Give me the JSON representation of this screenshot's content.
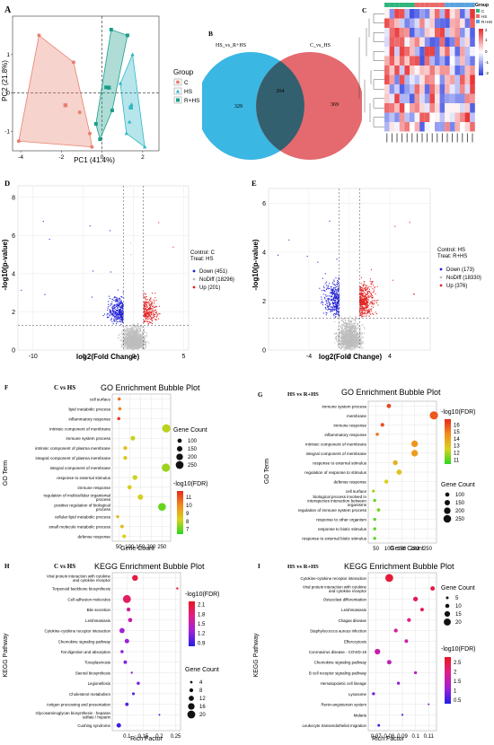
{
  "panels": {
    "A": {
      "letter": "A",
      "xlabel": "PC1 (41.4%)",
      "ylabel": "PC2 (21.8%)",
      "legend_title": "Group",
      "legend": [
        "C",
        "HS",
        "R+HS"
      ],
      "xticks": [
        "-4",
        "-2",
        "0",
        "2"
      ],
      "yticks": [
        "1",
        "0",
        "-1"
      ]
    },
    "B": {
      "letter": "B",
      "left_title": "HS_vs_R+HS",
      "right_title": "C_vs_HS",
      "left_only": "329",
      "overlap": "204",
      "right_only": "369"
    },
    "C": {
      "letter": "C",
      "legend_title": "Group",
      "legend": [
        "C",
        "HS",
        "R+HS"
      ],
      "scale": [
        "2",
        "1",
        "0",
        "-1",
        "-2"
      ]
    },
    "D": {
      "letter": "D",
      "xlabel": "log2(Fold Change)",
      "ylabel": "-log10(p-value)",
      "xticks": [
        "-10",
        "-5",
        "0",
        "5"
      ],
      "yticks": [
        "0",
        "2",
        "4",
        "6",
        "8"
      ],
      "control_line": "Control: C",
      "treat_line": "Treat:   HS",
      "legend": [
        "Down (451)",
        "NoDiff (18296)",
        "Up (201)"
      ]
    },
    "E": {
      "letter": "E",
      "xlabel": "log2(Fold Change)",
      "ylabel": "-log10(p-value)",
      "xticks": [
        "-4",
        "0",
        "4"
      ],
      "yticks": [
        "0",
        "2",
        "4",
        "6"
      ],
      "control_line": "Control: HS",
      "treat_line": "Treat:    R+HS",
      "legend": [
        "Down (173)",
        "NoDiff (18330)",
        "Up (376)"
      ]
    },
    "F": {
      "letter": "F",
      "compare": "C vs HS"
    },
    "G": {
      "letter": "G",
      "compare": "HS vs R+HS"
    },
    "H": {
      "letter": "H",
      "compare": "C vs HS"
    },
    "I": {
      "letter": "I",
      "compare": "HS vs R+HS"
    }
  },
  "chart_data": [
    {
      "panel": "A",
      "type": "scatter",
      "xlabel": "PC1 (41.4%)",
      "ylabel": "PC2 (21.8%)",
      "xlim": [
        -4.4,
        2.8
      ],
      "ylim": [
        -1.5,
        2
      ],
      "series": [
        {
          "name": "C",
          "color": "#e8806f",
          "points": [
            [
              -4.1,
              -1.25
            ],
            [
              -3.1,
              1.5
            ],
            [
              -1.4,
              0.8
            ],
            [
              -1.1,
              -0.5
            ],
            [
              -0.5,
              -1.4
            ],
            [
              -0.6,
              -1.05
            ]
          ]
        },
        {
          "name": "HS",
          "color": "#2fb6c6",
          "points": [
            [
              2.1,
              -1.4
            ],
            [
              1.5,
              1.0
            ],
            [
              1.2,
              -1.05
            ],
            [
              0.9,
              0.25
            ],
            [
              1.35,
              -0.75
            ],
            [
              1.45,
              -0.3
            ]
          ]
        },
        {
          "name": "R+HS",
          "color": "#1a9e8a",
          "points": [
            [
              0.45,
              1.65
            ],
            [
              1.25,
              1.5
            ],
            [
              0.2,
              0.15
            ],
            [
              0.5,
              -0.45
            ],
            [
              -0.1,
              -1.2
            ],
            [
              -0.3,
              -0.8
            ]
          ]
        }
      ]
    },
    {
      "panel": "C",
      "type": "heatmap",
      "rows": 13,
      "cols": 18,
      "values": [
        [
          0.1,
          -0.9,
          1.4,
          1.3,
          -0.6,
          -1.4,
          -1.2,
          -0.8,
          -1.0,
          0.3,
          1.1,
          -0.6,
          1.4,
          0.2,
          0.6,
          -1.2,
          -0.4,
          1.5
        ],
        [
          1.3,
          0.9,
          0.5,
          -0.4,
          -1.0,
          -0.7,
          -0.3,
          0.9,
          -0.2,
          0.4,
          -1.1,
          -1.2,
          -1.3,
          0.6,
          0.7,
          0.2,
          -1.1,
          1.2
        ],
        [
          -0.2,
          1.1,
          1.4,
          0.9,
          0.8,
          -1.3,
          -0.6,
          -0.8,
          0.4,
          0.2,
          1.2,
          1.4,
          -0.5,
          0.5,
          0.8,
          -0.9,
          -0.2,
          -1.3
        ],
        [
          -0.3,
          1.2,
          1.1,
          1.2,
          -0.1,
          0.5,
          0.9,
          0.2,
          -0.9,
          -1.3,
          -1.2,
          1.1,
          -1.4,
          -1.0,
          1.0,
          -0.4,
          0.3,
          -1.2
        ],
        [
          -0.1,
          1.4,
          -0.4,
          1.4,
          1.1,
          0.5,
          -0.6,
          -1.3,
          1.4,
          1.4,
          -1.1,
          0.4,
          1.1,
          -0.2,
          -1.2,
          0.7,
          -0.5,
          -0.1
        ],
        [
          0.6,
          1.2,
          0.4,
          1.1,
          0.4,
          1.2,
          1.3,
          -1.4,
          1.1,
          -0.6,
          -1.1,
          -0.7,
          -1.3,
          0.0,
          -0.6,
          0.5,
          -0.6,
          -1.1
        ],
        [
          1.1,
          0.4,
          1.3,
          -0.4,
          1.4,
          0.4,
          0.1,
          0.5,
          0.4,
          1.0,
          0.4,
          0.8,
          0.8,
          -0.2,
          -1.2,
          -0.9,
          0.5,
          0.8
        ],
        [
          1.3,
          0.7,
          -1.0,
          1.3,
          -0.6,
          -0.2,
          -0.5,
          0.2,
          0.9,
          0.8,
          0.0,
          -0.9,
          0.5,
          0.7,
          -0.5,
          1.2,
          0.5,
          1.5
        ],
        [
          0.3,
          -0.9,
          -0.4,
          -1.3,
          -0.8,
          -0.5,
          1.1,
          0.4,
          -1.2,
          1.1,
          0.4,
          -1.2,
          0.6,
          -0.2,
          -0.5,
          0.9,
          -0.3,
          1.4
        ],
        [
          0.4,
          -0.2,
          1.4,
          -0.6,
          -0.6,
          -1.3,
          0.8,
          -0.3,
          -0.8,
          1.4,
          0.2,
          -1.1,
          -0.8,
          -0.7,
          -0.9,
          -0.9,
          0.9,
          0.8
        ],
        [
          1.1,
          1.0,
          0.5,
          1.4,
          0.0,
          0.7,
          0.9,
          0.3,
          -0.2,
          0.9,
          0.3,
          -1.2,
          0.1,
          0.1,
          0.1,
          -0.3,
          0.4,
          -1.3
        ],
        [
          -0.8,
          -0.5,
          -0.9,
          0.8,
          -0.5,
          -0.8,
          -0.1,
          1.2,
          1.2,
          0.0,
          0.1,
          -0.5,
          0.1,
          -0.2,
          0.5,
          0.9,
          1.5,
          -0.5
        ],
        [
          -0.6,
          0.2,
          -0.1,
          0.7,
          1.0,
          0.0,
          0.6,
          -1.3,
          -0.1,
          0.0,
          -0.8,
          -0.8,
          0.9,
          -1.0,
          0.6,
          0.0,
          0.3,
          1.1
        ]
      ]
    },
    {
      "panel": "D",
      "type": "scatter",
      "title": "",
      "xlabel": "log2(Fold Change)",
      "ylabel": "-log10(p-value)",
      "xlim": [
        -11.5,
        5.5
      ],
      "ylim": [
        0,
        8.6
      ],
      "series": [
        {
          "name": "Down",
          "count": 451,
          "color": "#1f1fd6"
        },
        {
          "name": "NoDiff",
          "count": 18296,
          "color": "#bdbdbd"
        },
        {
          "name": "Up",
          "count": 201,
          "color": "#e32222"
        }
      ]
    },
    {
      "panel": "E",
      "type": "scatter",
      "title": "",
      "xlabel": "log2(Fold Change)",
      "ylabel": "-log10(p-value)",
      "xlim": [
        -8,
        8
      ],
      "ylim": [
        0,
        6.6
      ],
      "series": [
        {
          "name": "Down",
          "count": 173,
          "color": "#1f1fd6"
        },
        {
          "name": "NoDiff",
          "count": 18330,
          "color": "#bdbdbd"
        },
        {
          "name": "Up",
          "count": 376,
          "color": "#e32222"
        }
      ]
    },
    {
      "panel": "F",
      "type": "scatter",
      "title": "GO Enrichment Bubble Plot",
      "xlabel": "Gene Count",
      "ylabel": "GO Term",
      "xlim": [
        20,
        290
      ],
      "xticks": [
        50,
        100,
        150,
        200,
        250
      ],
      "size_legend": {
        "title": "Gene Count",
        "values": [
          100,
          150,
          200,
          250
        ]
      },
      "color_legend": {
        "title": "-log10(FDR)",
        "ticks": [
          11,
          10,
          9,
          8,
          7
        ],
        "range": [
          6.4,
          11.8
        ]
      },
      "terms": [
        "cell surface",
        "lipid metabolic process",
        "inflammatory response",
        "intrinsic component of membrane",
        "immune system process",
        "intrinsic component of plasma membrane",
        "integral component of plasma membrane",
        "integral component of membrane",
        "response to external stimulus",
        "immune response",
        "regulation of multicellular organismal process",
        "positive regulation of biological process",
        "cellular lipid metabolic process",
        "small molecule metabolic process",
        "defense response"
      ],
      "count": [
        52,
        55,
        50,
        270,
        115,
        80,
        80,
        268,
        125,
        100,
        150,
        250,
        45,
        65,
        75
      ],
      "fdr": [
        10.5,
        10.2,
        11.6,
        7.9,
        8.0,
        8.7,
        8.5,
        7.6,
        8.1,
        8.3,
        8.3,
        7.0,
        8.9,
        8.8,
        8.2
      ]
    },
    {
      "panel": "G",
      "type": "scatter",
      "title": "GO Enrichment Bubble Plot",
      "xlabel": "Gene Count",
      "ylabel": "GO Term",
      "xlim": [
        20,
        285
      ],
      "xticks": [
        50,
        100,
        150,
        200,
        250
      ],
      "size_legend": {
        "title": "Gene Count",
        "values": [
          100,
          150,
          200,
          250
        ]
      },
      "color_legend": {
        "title": "-log10(FDR)",
        "ticks": [
          16,
          15,
          14,
          13,
          12,
          11
        ],
        "range": [
          10.4,
          16.8
        ]
      },
      "terms": [
        "immune system process",
        "membrane",
        "immune response",
        "inflammatory response",
        "intrinsic component of membrane",
        "integral component of membrane",
        "response to external stimulus",
        "regulation of response to stimulus",
        "defense response",
        "cell surface",
        "biological process involved in interspecies interaction between organisms",
        "regulation of immune system process",
        "response to other organism",
        "response to biotic stimulus",
        "response to external biotic stimulus"
      ],
      "count": [
        100,
        275,
        75,
        55,
        200,
        200,
        125,
        140,
        90,
        40,
        45,
        60,
        45,
        45,
        45
      ],
      "fdr": [
        16.2,
        15.8,
        16.0,
        15.2,
        14.4,
        14.2,
        13.6,
        13.0,
        12.5,
        11.8,
        11.2,
        11.4,
        11.0,
        11.0,
        10.9
      ]
    },
    {
      "panel": "H",
      "type": "scatter",
      "title": "KEGG Enrichment Bubble Plot",
      "xlabel": "Rich Factor",
      "ylabel": "KEGG Pathway",
      "xlim": [
        0.055,
        0.265
      ],
      "xticks": [
        0.1,
        0.15,
        0.2,
        0.25
      ],
      "size_legend": {
        "title": "Gene Count",
        "values": [
          4,
          8,
          12,
          16,
          20
        ]
      },
      "color_legend": {
        "title": "-log10(FDR)",
        "ticks": [
          2.1,
          1.8,
          1.5,
          1.2,
          0.9
        ],
        "range": [
          0.8,
          2.2
        ]
      },
      "terms": [
        "Viral protein interaction with cytokine and cytokine receptor",
        "Terpenoid backbone biosynthesis",
        "Cell adhesion molecules",
        "Bile secretion",
        "Leishmaniasis",
        "Cytokine-cytokine receptor interaction",
        "Chemokine signaling pathway",
        "Fat digestion and absorption",
        "Toxoplasmosis",
        "Steroid biosynthesis",
        "Legionellosis",
        "Cholesterol metabolism",
        "Antigen processing and presentation",
        "Glycosaminoglycan biosynthesis - heparan sulfate / heparin",
        "Cushing syndrome"
      ],
      "rich": [
        0.125,
        0.255,
        0.1,
        0.105,
        0.11,
        0.085,
        0.1,
        0.085,
        0.095,
        0.115,
        0.135,
        0.12,
        0.1,
        0.2,
        0.075
      ],
      "count": [
        14,
        3,
        20,
        8,
        9,
        12,
        10,
        6,
        7,
        3,
        6,
        5,
        7,
        2,
        10
      ],
      "fdr": [
        2.05,
        2.1,
        1.9,
        1.65,
        1.55,
        1.3,
        1.25,
        1.2,
        1.15,
        1.15,
        1.1,
        1.0,
        1.0,
        0.95,
        0.9
      ]
    },
    {
      "panel": "I",
      "type": "scatter",
      "title": "KEGG Enrichment Bubble Plot",
      "xlabel": "Rich Factor",
      "ylabel": "KEGG Pathway",
      "xlim": [
        0.064,
        0.116
      ],
      "xticks": [
        0.07,
        0.08,
        0.09,
        0.1,
        0.11
      ],
      "size_legend": {
        "title": "Gene Count",
        "values": [
          5,
          10,
          15,
          20
        ]
      },
      "color_legend": {
        "title": "-log10(FDR)",
        "ticks": [
          2.5,
          2.0,
          1.5,
          1.0,
          0.5
        ],
        "range": [
          0.3,
          2.8
        ]
      },
      "terms": [
        "Cytokine-cytokine receptor interaction",
        "Viral protein interaction with cytokine and cytokine receptor",
        "Osteoclast differentiation",
        "Leishmaniasis",
        "Chagas disease",
        "Staphylococcus aureus infection",
        "Efferocytosis",
        "Coronavirus disease - COVID-19",
        "Chemokine signaling pathway",
        "B cell receptor signaling pathway",
        "Hematopoietic cell lineage",
        "Lysosome",
        "Renin-angiotensin system",
        "Malaria",
        "Leukocyte transendothelial migration"
      ],
      "rich": [
        0.08,
        0.113,
        0.1,
        0.105,
        0.095,
        0.085,
        0.093,
        0.071,
        0.08,
        0.1,
        0.087,
        0.068,
        0.11,
        0.09,
        0.072
      ],
      "count": [
        23,
        11,
        12,
        8,
        9,
        9,
        8,
        15,
        11,
        6,
        6,
        6,
        2,
        3,
        5
      ],
      "fdr": [
        2.6,
        2.5,
        2.4,
        2.4,
        2.0,
        1.8,
        1.7,
        1.6,
        1.5,
        1.4,
        1.0,
        0.8,
        0.9,
        0.7,
        0.6
      ]
    }
  ]
}
